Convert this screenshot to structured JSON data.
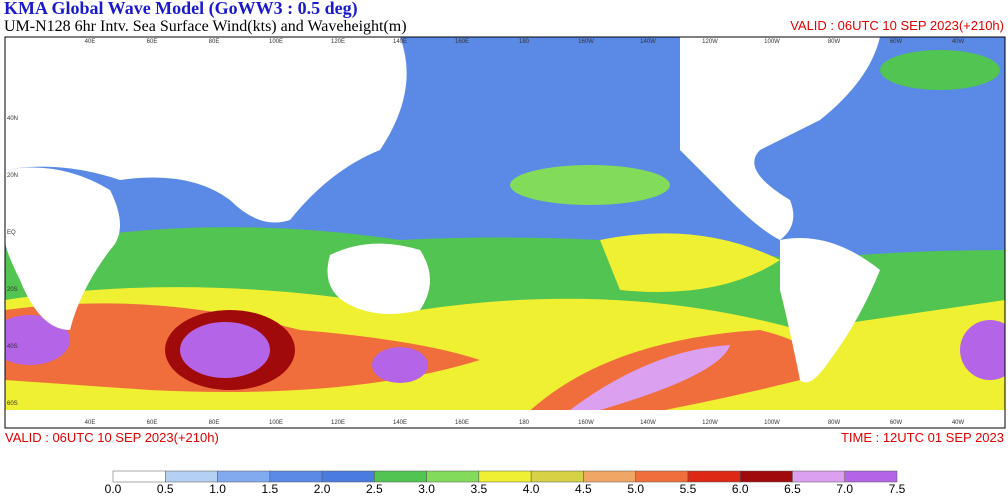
{
  "header": {
    "title": "KMA  Global Wave Model (GoWW3 : 0.5 deg)",
    "subtitle": "UM-N128  6hr Intv. Sea Surface Wind(kts) and Waveheight(m)",
    "valid_top": "VALID : 06UTC 10 SEP 2023(+210h)"
  },
  "footer": {
    "valid": "VALID : 06UTC 10 SEP 2023(+210h)",
    "time": "TIME : 12UTC 01 SEP 2023"
  },
  "map": {
    "longitudes": [
      "40E",
      "60E",
      "80E",
      "100E",
      "120E",
      "140E",
      "160E",
      "180",
      "160W",
      "140W",
      "120W",
      "100W",
      "80W",
      "60W",
      "40W"
    ],
    "latitudes": [
      "40N",
      "20N",
      "EQ",
      "20S",
      "40S",
      "60S"
    ]
  },
  "colorbar": {
    "labels": [
      "0.0",
      "0.5",
      "1.0",
      "1.5",
      "2.0",
      "2.5",
      "3.0",
      "3.5",
      "4.0",
      "4.5",
      "5.0",
      "5.5",
      "6.0",
      "6.5",
      "7.0",
      "7.5"
    ],
    "colors": [
      "#ffffff",
      "#b4d0f2",
      "#82aaee",
      "#5a8ae6",
      "#4a7ce0",
      "#52c452",
      "#82dc5a",
      "#f0f032",
      "#d6d246",
      "#f0a664",
      "#f06e3c",
      "#dc2814",
      "#a00a0a",
      "#dca0f0",
      "#b464e6"
    ]
  }
}
